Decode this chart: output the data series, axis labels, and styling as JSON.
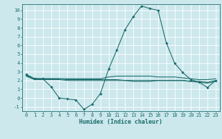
{
  "xlabel": "Humidex (Indice chaleur)",
  "xlim": [
    -0.5,
    23.5
  ],
  "ylim": [
    -1.5,
    10.7
  ],
  "yticks": [
    -1,
    0,
    1,
    2,
    3,
    4,
    5,
    6,
    7,
    8,
    9,
    10
  ],
  "xticks": [
    0,
    1,
    2,
    3,
    4,
    5,
    6,
    7,
    8,
    9,
    10,
    11,
    12,
    13,
    14,
    15,
    16,
    17,
    18,
    19,
    20,
    21,
    22,
    23
  ],
  "background_color": "#cce8ed",
  "grid_color": "#ffffff",
  "line_color": "#1a6b6b",
  "line1_x": [
    0,
    1,
    2,
    3,
    4,
    5,
    6,
    7,
    8,
    9,
    10,
    11,
    12,
    13,
    14,
    15,
    16,
    17,
    18,
    19,
    20,
    21,
    22,
    23
  ],
  "line1_y": [
    2.7,
    2.2,
    2.2,
    1.3,
    0.0,
    -0.1,
    -0.2,
    -1.3,
    -0.7,
    0.5,
    3.3,
    5.5,
    7.8,
    9.3,
    10.5,
    10.2,
    10.0,
    6.3,
    4.0,
    2.9,
    2.1,
    1.8,
    1.2,
    2.0
  ],
  "line2_x": [
    0,
    1,
    2,
    3,
    4,
    5,
    6,
    7,
    8,
    9,
    10,
    11,
    12,
    13,
    14,
    15,
    16,
    17,
    18,
    19,
    20,
    21,
    22,
    23
  ],
  "line2_y": [
    2.6,
    2.2,
    2.2,
    2.2,
    2.2,
    2.2,
    2.2,
    2.2,
    2.2,
    2.2,
    2.4,
    2.5,
    2.5,
    2.5,
    2.5,
    2.5,
    2.4,
    2.4,
    2.4,
    2.3,
    2.2,
    2.1,
    2.1,
    2.2
  ],
  "line3_x": [
    0,
    1,
    2,
    3,
    4,
    5,
    6,
    7,
    8,
    9,
    10,
    11,
    12,
    13,
    14,
    15,
    16,
    17,
    18,
    19,
    20,
    21,
    22,
    23
  ],
  "line3_y": [
    2.5,
    2.1,
    2.1,
    2.1,
    2.1,
    2.0,
    2.0,
    2.0,
    2.0,
    2.0,
    2.0,
    2.0,
    2.0,
    2.0,
    2.0,
    2.0,
    2.0,
    2.0,
    2.0,
    2.0,
    1.9,
    1.8,
    1.7,
    1.9
  ],
  "line4_x": [
    0,
    1,
    2,
    3,
    4,
    5,
    6,
    7,
    8,
    9,
    10,
    11,
    12,
    13,
    14,
    15,
    16,
    17,
    18,
    19,
    20,
    21,
    22,
    23
  ],
  "line4_y": [
    2.5,
    2.2,
    2.2,
    2.2,
    2.2,
    2.1,
    2.1,
    2.1,
    2.1,
    2.1,
    2.1,
    2.1,
    2.0,
    1.9,
    1.9,
    1.9,
    2.0,
    2.0,
    2.0,
    2.0,
    1.9,
    1.9,
    1.8,
    2.0
  ]
}
